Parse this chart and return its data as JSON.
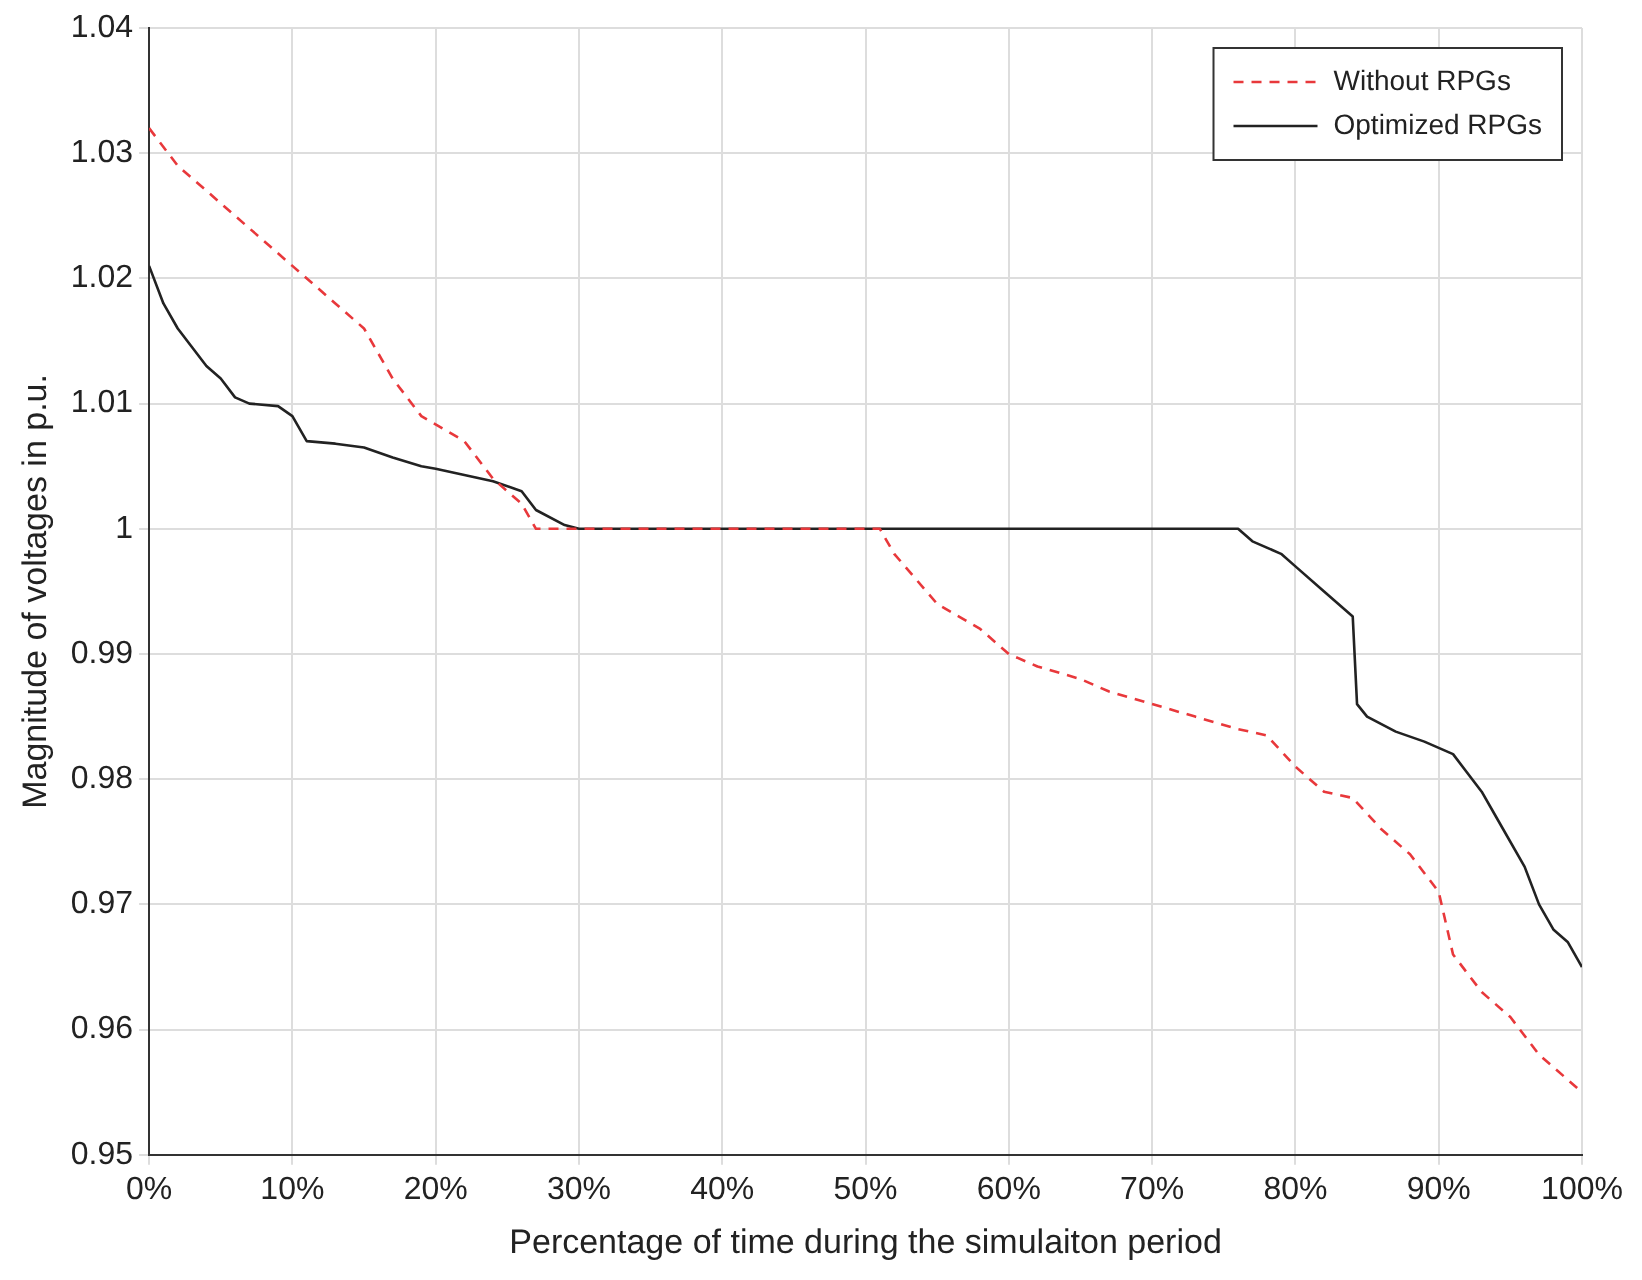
{
  "chart_data": {
    "type": "line",
    "xlabel": "Percentage of time during the simulaiton period",
    "ylabel": "Magnitude of voltages in p.u.",
    "xlim": [
      0,
      100
    ],
    "xticks": [
      {
        "value": 0,
        "label": "0%"
      },
      {
        "value": 10,
        "label": "10%"
      },
      {
        "value": 20,
        "label": "20%"
      },
      {
        "value": 30,
        "label": "30%"
      },
      {
        "value": 40,
        "label": "40%"
      },
      {
        "value": 50,
        "label": "50%"
      },
      {
        "value": 60,
        "label": "60%"
      },
      {
        "value": 70,
        "label": "70%"
      },
      {
        "value": 80,
        "label": "80%"
      },
      {
        "value": 90,
        "label": "90%"
      },
      {
        "value": 100,
        "label": "100%"
      }
    ],
    "ylim": [
      0.95,
      1.04
    ],
    "yticks": [
      0.95,
      0.96,
      0.97,
      0.98,
      0.99,
      1,
      1.01,
      1.02,
      1.03,
      1.04
    ],
    "grid": true,
    "legend": "top right",
    "marker": "none",
    "series": [
      {
        "name": "Without RPGs",
        "color": "#e8383b",
        "line_style": "dashed",
        "x": [
          0,
          2,
          5,
          7,
          10,
          13,
          15,
          17,
          19,
          22,
          24,
          26,
          27,
          29,
          30,
          50,
          51,
          52,
          55,
          58,
          60,
          62,
          65,
          67,
          70,
          73,
          76,
          78,
          80,
          82,
          84,
          86,
          88,
          90,
          91,
          92,
          93,
          95,
          97,
          99,
          100
        ],
        "values": [
          1.032,
          1.029,
          1.026,
          1.024,
          1.021,
          1.018,
          1.016,
          1.012,
          1.009,
          1.007,
          1.004,
          1.002,
          1.0,
          1.0,
          1.0,
          1.0,
          1.0,
          0.998,
          0.994,
          0.992,
          0.99,
          0.989,
          0.988,
          0.987,
          0.986,
          0.985,
          0.984,
          0.9835,
          0.981,
          0.979,
          0.9785,
          0.976,
          0.974,
          0.971,
          0.966,
          0.9645,
          0.963,
          0.961,
          0.958,
          0.956,
          0.955
        ]
      },
      {
        "name": "Optimized RPGs",
        "color": "#222222",
        "line_style": "solid",
        "x": [
          0,
          1,
          2,
          3,
          4,
          5,
          6,
          7,
          9,
          10,
          11,
          13,
          15,
          17,
          19,
          20,
          22,
          24,
          26,
          27,
          29,
          30,
          76,
          77,
          79,
          80,
          82,
          83,
          84,
          84.3,
          85,
          87,
          89,
          91,
          93,
          94,
          96,
          97,
          98,
          99,
          100
        ],
        "values": [
          1.021,
          1.018,
          1.016,
          1.0145,
          1.013,
          1.012,
          1.0105,
          1.01,
          1.0098,
          1.009,
          1.007,
          1.0068,
          1.0065,
          1.0057,
          1.005,
          1.0048,
          1.0043,
          1.0038,
          1.003,
          1.0015,
          1.0003,
          1.0,
          1.0,
          0.999,
          0.998,
          0.997,
          0.995,
          0.994,
          0.993,
          0.986,
          0.985,
          0.9838,
          0.983,
          0.982,
          0.979,
          0.977,
          0.973,
          0.97,
          0.968,
          0.967,
          0.965
        ]
      }
    ]
  }
}
